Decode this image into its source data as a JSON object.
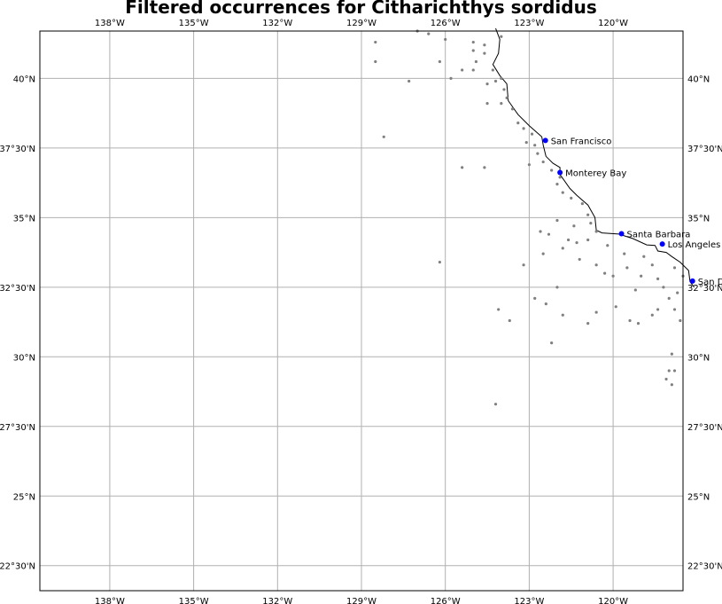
{
  "title": "Filtered occurrences for Citharichthys sordidus",
  "map": {
    "lon_range": [
      -140.5,
      -117.5
    ],
    "lat_range": [
      21.6,
      41.7
    ],
    "grid": true,
    "lon_ticks": [
      {
        "value": -138,
        "label": "138°W"
      },
      {
        "value": -135,
        "label": "135°W"
      },
      {
        "value": -132,
        "label": "132°W"
      },
      {
        "value": -129,
        "label": "129°W"
      },
      {
        "value": -126,
        "label": "126°W"
      },
      {
        "value": -123,
        "label": "123°W"
      },
      {
        "value": -120,
        "label": "120°W"
      }
    ],
    "lat_ticks": [
      {
        "value": 40,
        "label": "40°N"
      },
      {
        "value": 37.5,
        "label": "37°30'N"
      },
      {
        "value": 35,
        "label": "35°N"
      },
      {
        "value": 32.5,
        "label": "32°30'N"
      },
      {
        "value": 30,
        "label": "30°N"
      },
      {
        "value": 27.5,
        "label": "27°30'N"
      },
      {
        "value": 25,
        "label": "25°N"
      },
      {
        "value": 22.5,
        "label": "22°30'N"
      }
    ],
    "colors": {
      "occurrence": "#808080",
      "city": "#0000ff",
      "coast": "#000000",
      "grid": "#b0b0b0"
    }
  },
  "cities": [
    {
      "name": "San Francisco",
      "lon": -122.42,
      "lat": 37.77
    },
    {
      "name": "Monterey Bay",
      "lon": -121.9,
      "lat": 36.62
    },
    {
      "name": "Santa Barbara",
      "lon": -119.7,
      "lat": 34.42
    },
    {
      "name": "Los Angeles",
      "lon": -118.24,
      "lat": 34.05
    },
    {
      "name": "San Diego",
      "lon": -117.16,
      "lat": 32.72
    }
  ],
  "coastline": [
    [
      -124.2,
      41.8
    ],
    [
      -124.05,
      41.4
    ],
    [
      -124.1,
      40.9
    ],
    [
      -124.3,
      40.5
    ],
    [
      -124.05,
      40.1
    ],
    [
      -123.8,
      39.8
    ],
    [
      -123.75,
      39.2
    ],
    [
      -123.4,
      38.7
    ],
    [
      -123.0,
      38.3
    ],
    [
      -122.55,
      37.9
    ],
    [
      -122.5,
      37.6
    ],
    [
      -122.4,
      37.2
    ],
    [
      -122.15,
      36.95
    ],
    [
      -121.9,
      36.8
    ],
    [
      -121.9,
      36.55
    ],
    [
      -121.55,
      36.05
    ],
    [
      -121.3,
      35.8
    ],
    [
      -120.9,
      35.45
    ],
    [
      -120.65,
      35.0
    ],
    [
      -120.6,
      34.55
    ],
    [
      -120.4,
      34.45
    ],
    [
      -119.8,
      34.41
    ],
    [
      -119.3,
      34.25
    ],
    [
      -118.8,
      34.02
    ],
    [
      -118.5,
      34.0
    ],
    [
      -118.4,
      33.8
    ],
    [
      -118.1,
      33.75
    ],
    [
      -117.9,
      33.6
    ],
    [
      -117.6,
      33.4
    ],
    [
      -117.3,
      33.1
    ],
    [
      -117.25,
      32.7
    ],
    [
      -117.1,
      32.5
    ]
  ],
  "occurrences": [
    [
      -127.0,
      41.7
    ],
    [
      -126.6,
      41.6
    ],
    [
      -124.0,
      41.5
    ],
    [
      -125.0,
      41.3
    ],
    [
      -124.6,
      41.2
    ],
    [
      -125.0,
      41.0
    ],
    [
      -124.6,
      40.9
    ],
    [
      -124.9,
      40.6
    ],
    [
      -125.4,
      40.3
    ],
    [
      -125.0,
      40.3
    ],
    [
      -124.3,
      40.3
    ],
    [
      -124.0,
      40.0
    ],
    [
      -124.5,
      39.8
    ],
    [
      -124.2,
      39.9
    ],
    [
      -124.5,
      39.1
    ],
    [
      -123.9,
      39.6
    ],
    [
      -124.0,
      39.1
    ],
    [
      -123.8,
      39.3
    ],
    [
      -123.6,
      38.9
    ],
    [
      -123.4,
      38.4
    ],
    [
      -123.2,
      38.2
    ],
    [
      -122.9,
      38.0
    ],
    [
      -123.1,
      37.7
    ],
    [
      -122.8,
      37.6
    ],
    [
      -122.7,
      37.3
    ],
    [
      -122.5,
      37.0
    ],
    [
      -123.0,
      36.9
    ],
    [
      -122.2,
      36.7
    ],
    [
      -121.9,
      36.45
    ],
    [
      -122.0,
      36.2
    ],
    [
      -121.8,
      35.9
    ],
    [
      -121.5,
      35.7
    ],
    [
      -121.1,
      35.5
    ],
    [
      -120.9,
      35.1
    ],
    [
      -120.8,
      34.8
    ],
    [
      -120.9,
      34.2
    ],
    [
      -121.3,
      34.1
    ],
    [
      -121.8,
      33.9
    ],
    [
      -122.5,
      33.7
    ],
    [
      -121.2,
      33.5
    ],
    [
      -120.6,
      33.3
    ],
    [
      -120.3,
      33.0
    ],
    [
      -119.5,
      33.2
    ],
    [
      -119.0,
      32.9
    ],
    [
      -118.4,
      32.8
    ],
    [
      -117.7,
      32.3
    ],
    [
      -118.0,
      32.1
    ],
    [
      -117.8,
      31.7
    ],
    [
      -118.4,
      31.7
    ],
    [
      -119.9,
      31.8
    ],
    [
      -120.6,
      31.6
    ],
    [
      -121.8,
      31.5
    ],
    [
      -122.4,
      31.9
    ],
    [
      -122.0,
      32.5
    ],
    [
      -122.8,
      32.1
    ],
    [
      -123.2,
      33.3
    ],
    [
      -119.4,
      31.3
    ],
    [
      -119.1,
      31.2
    ],
    [
      -118.6,
      31.5
    ],
    [
      -117.6,
      31.3
    ],
    [
      -120.9,
      31.2
    ],
    [
      -122.2,
      30.5
    ],
    [
      -118.0,
      29.5
    ],
    [
      -117.9,
      29.0
    ],
    [
      -118.1,
      29.2
    ],
    [
      -117.8,
      29.5
    ],
    [
      -117.9,
      30.1
    ],
    [
      -124.1,
      31.7
    ],
    [
      -123.7,
      31.3
    ],
    [
      -124.2,
      28.3
    ],
    [
      -126.2,
      33.4
    ],
    [
      -124.6,
      36.8
    ],
    [
      -125.4,
      36.8
    ],
    [
      -127.3,
      39.9
    ],
    [
      -128.2,
      37.9
    ],
    [
      -128.5,
      41.3
    ],
    [
      -128.5,
      40.6
    ],
    [
      -126.0,
      41.4
    ],
    [
      -125.8,
      40.0
    ],
    [
      -126.2,
      40.6
    ],
    [
      -120.2,
      34.0
    ],
    [
      -119.6,
      33.7
    ],
    [
      -118.9,
      33.6
    ],
    [
      -118.6,
      33.3
    ],
    [
      -117.8,
      33.2
    ],
    [
      -117.5,
      32.9
    ],
    [
      -118.2,
      32.5
    ],
    [
      -119.2,
      32.4
    ],
    [
      -120.0,
      32.9
    ],
    [
      -120.6,
      34.5
    ],
    [
      -121.4,
      34.7
    ],
    [
      -122.0,
      34.9
    ],
    [
      -122.6,
      34.5
    ],
    [
      -122.3,
      34.4
    ],
    [
      -121.6,
      34.2
    ]
  ]
}
